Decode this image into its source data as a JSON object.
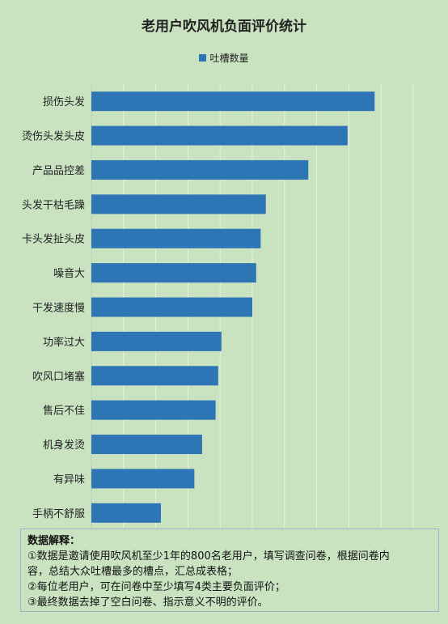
{
  "chart_data": {
    "type": "bar",
    "orientation": "horizontal",
    "title": "老用户吹风机负面评价统计",
    "categories": [
      "损伤头发",
      "烫伤头发头皮",
      "产品品控差",
      "头发干枯毛躁",
      "卡头发扯头皮",
      "噪音大",
      "干发速度慢",
      "功率过大",
      "吹风口堵塞",
      "售后不佳",
      "机身发烫",
      "有异味",
      "手柄不舒服"
    ],
    "series": [
      {
        "name": "吐槽数量",
        "values": [
          440,
          398,
          337,
          271,
          263,
          256,
          250,
          202,
          197,
          193,
          172,
          160,
          108
        ]
      }
    ],
    "xlim": [
      0,
      500
    ],
    "grid": true,
    "legend": "top",
    "bar_color": "#2e75b6",
    "grid_color": "#e6efe3"
  },
  "notes": {
    "title": "数据解释：",
    "lines": [
      "①数据是邀请使用吹风机至少1年的800名老用户，填写调查问卷，根据问卷内",
      "容，总结大众吐槽最多的槽点，汇总成表格；",
      "②每位老用户，可在问卷中至少填写4类主要负面评价；",
      "③最终数据去掉了空白问卷、指示意义不明的评价。"
    ]
  }
}
